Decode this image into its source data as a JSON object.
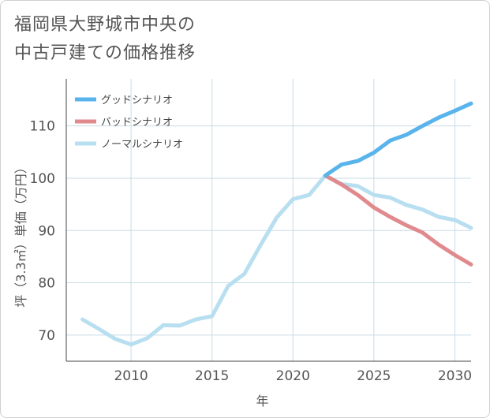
{
  "chart_data": {
    "type": "line",
    "title_line1": "福岡県大野城市中央の",
    "title_line2": "中古戸建ての価格推移",
    "xlabel": "年",
    "ylabel": "坪（3.3㎡）単価（万円）",
    "xlim": [
      2006,
      2031
    ],
    "ylim": [
      65,
      119
    ],
    "x_ticks": [
      2010,
      2015,
      2020,
      2025,
      2030
    ],
    "y_ticks": [
      70,
      80,
      90,
      100,
      110
    ],
    "grid": true,
    "legend_position": "top-left",
    "series": [
      {
        "name": "グッドシナリオ",
        "color": "#5ab4ec",
        "x": [
          2022,
          2023,
          2024,
          2025,
          2026,
          2027,
          2028,
          2029,
          2030,
          2031
        ],
        "values": [
          100.5,
          102.6,
          103.3,
          104.9,
          107.2,
          108.3,
          110.0,
          111.6,
          112.9,
          114.3
        ]
      },
      {
        "name": "バッドシナリオ",
        "color": "#e08a8e",
        "x": [
          2022,
          2023,
          2024,
          2025,
          2026,
          2027,
          2028,
          2029,
          2030,
          2031
        ],
        "values": [
          100.5,
          98.8,
          96.8,
          94.4,
          92.6,
          91.0,
          89.6,
          87.3,
          85.3,
          83.5
        ]
      },
      {
        "name": "ノーマルシナリオ",
        "color": "#b8dff0",
        "x": [
          2007,
          2008,
          2009,
          2010,
          2011,
          2012,
          2013,
          2014,
          2015,
          2016,
          2017,
          2018,
          2019,
          2020,
          2021,
          2022,
          2023,
          2024,
          2025,
          2026,
          2027,
          2028,
          2029,
          2030,
          2031
        ],
        "values": [
          73.0,
          71.2,
          69.3,
          68.2,
          69.4,
          71.9,
          71.8,
          73.0,
          73.6,
          79.4,
          81.7,
          87.2,
          92.5,
          96.0,
          96.8,
          100.5,
          98.9,
          98.5,
          96.8,
          96.3,
          94.9,
          94.0,
          92.6,
          92.0,
          90.5
        ]
      }
    ]
  }
}
